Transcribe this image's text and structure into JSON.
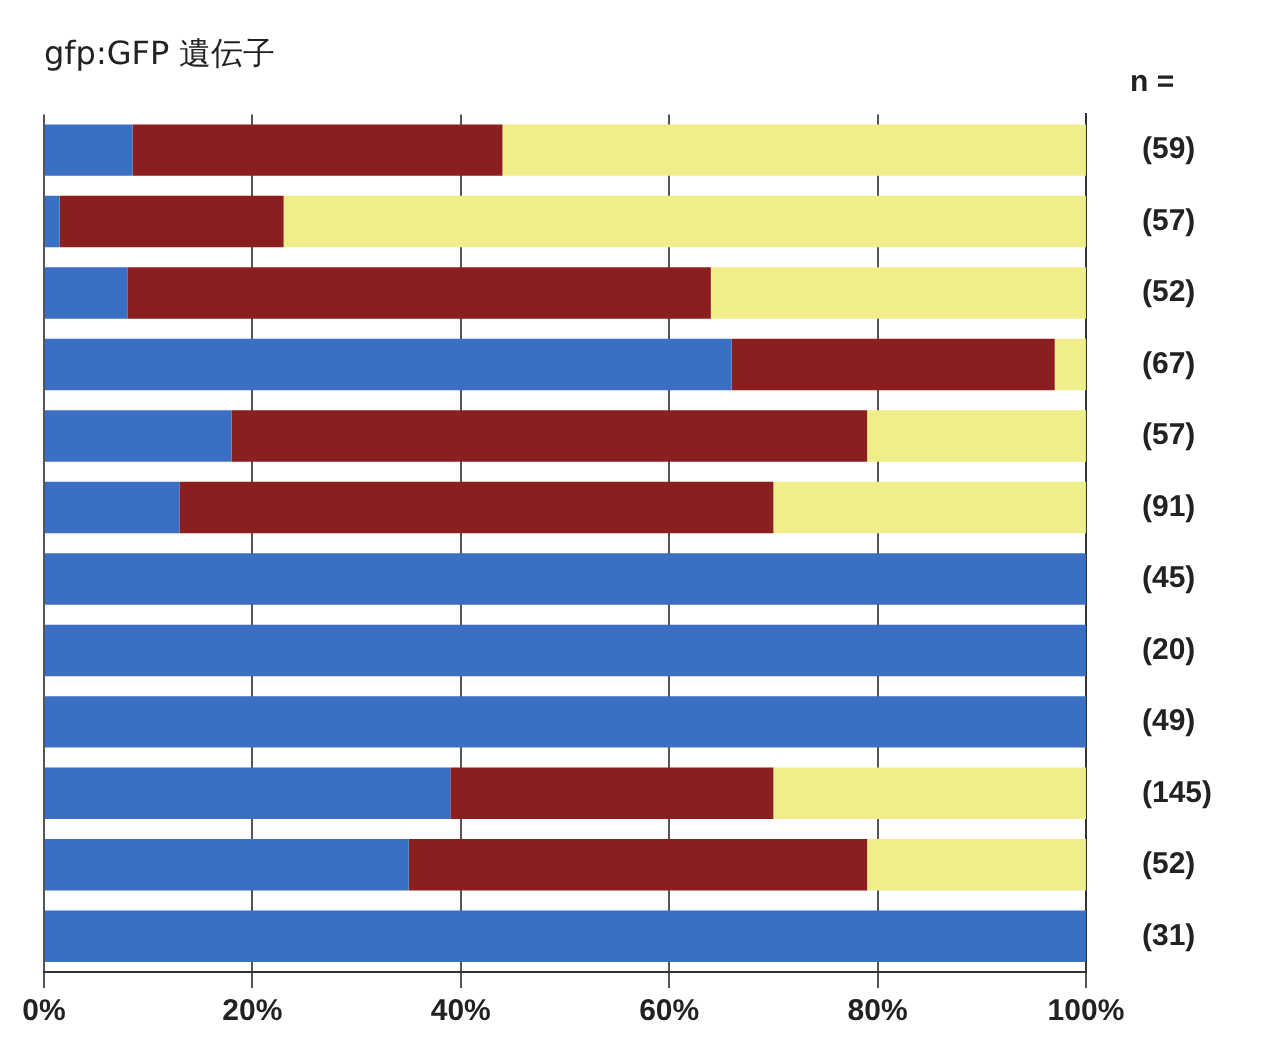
{
  "chart_data": {
    "type": "bar",
    "orientation": "horizontal",
    "stacked": true,
    "title": "gfp:GFP 遺伝子",
    "categories": [
      "(59)",
      "(57)",
      "(52)",
      "(67)",
      "(57)",
      "(91)",
      "(45)",
      "(20)",
      "(49)",
      "(145)",
      "(52)",
      "(31)"
    ],
    "series": [
      {
        "color": "#3a6fc4",
        "values": [
          8.5,
          1.5,
          8,
          66,
          18,
          13,
          100,
          100,
          100,
          39,
          35,
          100
        ]
      },
      {
        "color": "#8b1f1f",
        "values": [
          35.5,
          21.5,
          56,
          31,
          61,
          57,
          0,
          0,
          0,
          31,
          44,
          0
        ]
      },
      {
        "color": "#f0ee8a",
        "values": [
          56,
          77,
          36,
          3,
          21,
          30,
          0,
          0,
          0,
          30,
          21,
          0
        ]
      }
    ],
    "annotations": [
      "n ="
    ],
    "xlim": [
      0,
      100
    ],
    "xticks": [
      {
        "value": 0,
        "label": "0%"
      },
      {
        "value": 20,
        "label": "20%"
      },
      {
        "value": 40,
        "label": "40%"
      },
      {
        "value": 60,
        "label": "60%"
      },
      {
        "value": 80,
        "label": "80%"
      },
      {
        "value": 100,
        "label": "100%"
      }
    ],
    "grid": "x",
    "legend": false
  }
}
